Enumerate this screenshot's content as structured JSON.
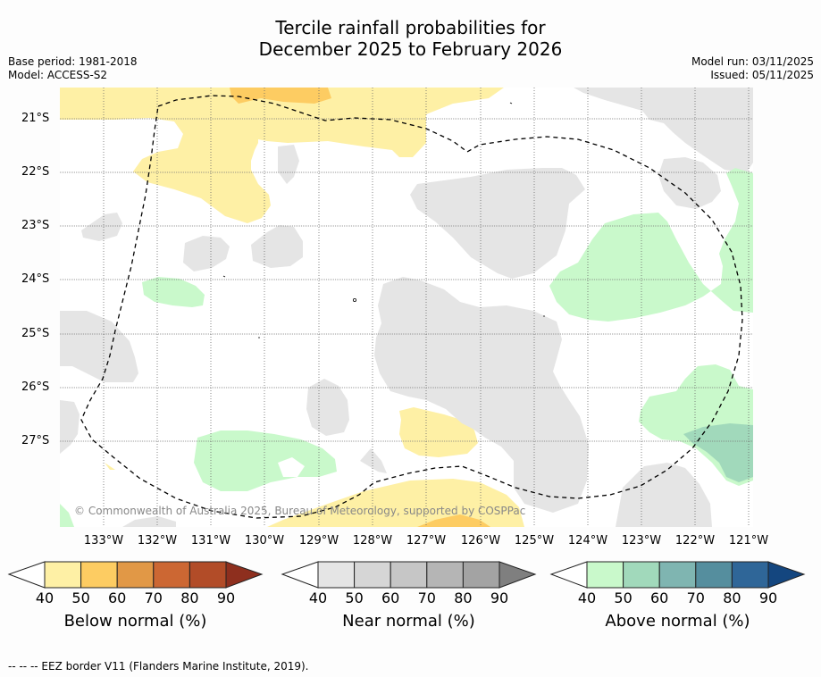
{
  "title_line1": "Tercile rainfall probabilities for",
  "title_line2": "December 2025 to February 2026",
  "base_period": "Base period: 1981-2018",
  "model": "Model: ACCESS-S2",
  "model_run": "Model run: 03/11/2025",
  "issued": "Issued: 05/11/2025",
  "copyright": "© Commonwealth of Australia 2025, Bureau of Meteorology, supported by COSPPac",
  "footnote": "--  --  -- EEZ border V11 (Flanders Marine Institute, 2019).",
  "map": {
    "lat_labels": [
      "21°S",
      "22°S",
      "23°S",
      "24°S",
      "25°S",
      "26°S",
      "27°S"
    ],
    "lon_labels": [
      "133°W",
      "132°W",
      "131°W",
      "130°W",
      "129°W",
      "128°W",
      "127°W",
      "126°W",
      "125°W",
      "124°W",
      "123°W",
      "122°W",
      "121°W"
    ]
  },
  "colorbars": {
    "ticks": [
      "40",
      "50",
      "60",
      "70",
      "80",
      "90"
    ],
    "below": {
      "label": "Below normal (%)",
      "colors": [
        "#fef0a5",
        "#fdcc62",
        "#e19846",
        "#cc6733",
        "#b24c28",
        "#8e2f1e"
      ]
    },
    "near": {
      "label": "Near normal (%)",
      "colors": [
        "#e5e5e5",
        "#d6d6d6",
        "#c6c6c6",
        "#b5b5b5",
        "#a3a3a3",
        "#7f7f7f"
      ]
    },
    "above": {
      "label": "Above normal (%)",
      "colors": [
        "#c9f9cb",
        "#a1d9bb",
        "#7fb5b1",
        "#558e9e",
        "#2f6698",
        "#14467f"
      ]
    }
  },
  "legend_colors": {
    "below_light": "#fef0a5",
    "below_mid": "#fdcc62",
    "near_light": "#e5e5e5",
    "above_light": "#c9f9cb",
    "above_mid": "#a1d9bb"
  }
}
